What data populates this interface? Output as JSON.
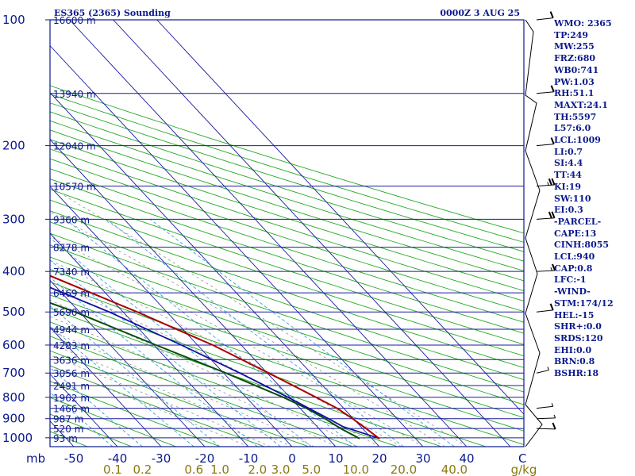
{
  "header": {
    "station": "ES365 (2365) Sounding",
    "time": "0000Z  3 AUG 25"
  },
  "indices": [
    "WMO: 2365",
    "TP:249",
    "MW:255",
    "FRZ:680",
    "WB0:741",
    "PW:1.03",
    "RH:51.1",
    "MAXT:24.1",
    "TH:5597",
    "L57:6.0",
    "LCL:1009",
    "LI:0.7",
    "SI:4.4",
    "TT:44",
    "KI:19",
    "SW:110",
    "EI:0.3",
    "-PARCEL-",
    "CAPE:13",
    "CINH:8055",
    "LCL:940",
    "CAP:0.8",
    "LFC:-1",
    "-WIND-",
    "STM:174/12",
    "HEL:-15",
    "SHR+:0.0",
    "SRDS:120",
    "EHI:0.0",
    "BRN:0.8",
    "BSHR:18"
  ],
  "colors": {
    "axis": "#0b1a8c",
    "isobar": "#1a1aa0",
    "isotherm": "#1a1aa0",
    "dry_adiabat": "#22aa22",
    "moist_adiabat": "#909090",
    "mixing_ratio": "#3aa0e0",
    "temperature": "#aa0000",
    "dewpoint": "#0b4d0b",
    "parcel": "#1010a0",
    "mixing_ratio_labels": "#8a7a10",
    "wind": "#000000"
  },
  "chart_data": {
    "type": "skew-t",
    "xlabel_left": "mb",
    "xlabel_right": "C",
    "mixing_ratio_unit": "g/kg",
    "pressure_ticks": [
      "100",
      "200",
      "300",
      "400",
      "500",
      "600",
      "700",
      "800",
      "900",
      "1000"
    ],
    "pressure_values": [
      100,
      200,
      300,
      400,
      500,
      600,
      700,
      800,
      900,
      1000
    ],
    "temperature_ticks": [
      "-50",
      "-40",
      "-30",
      "-20",
      "-10",
      "0",
      "10",
      "20",
      "30",
      "40"
    ],
    "temperature_values": [
      -50,
      -40,
      -30,
      -20,
      -10,
      0,
      10,
      20,
      30,
      40
    ],
    "mixing_ratio_ticks": [
      "0.1",
      "0.2",
      "0.6",
      "1.0",
      "2.0",
      "3.0",
      "5.0",
      "10.0",
      "20.0",
      "40.0"
    ],
    "mixing_ratio_values": [
      0.1,
      0.2,
      0.6,
      1.0,
      2.0,
      3.0,
      5.0,
      10.0,
      20.0,
      40.0
    ],
    "heights": [
      {
        "p": 100,
        "label": "16600 m"
      },
      {
        "p": 150,
        "label": "13940 m"
      },
      {
        "p": 200,
        "label": "12040 m"
      },
      {
        "p": 250,
        "label": "10570 m"
      },
      {
        "p": 300,
        "label": "9360 m"
      },
      {
        "p": 350,
        "label": "8278 m"
      },
      {
        "p": 400,
        "label": "7340 m"
      },
      {
        "p": 450,
        "label": "6469 m"
      },
      {
        "p": 500,
        "label": "5690 m"
      },
      {
        "p": 550,
        "label": "4944 m"
      },
      {
        "p": 600,
        "label": "4283 m"
      },
      {
        "p": 650,
        "label": "3636 m"
      },
      {
        "p": 700,
        "label": "3056 m"
      },
      {
        "p": 750,
        "label": "2491 m"
      },
      {
        "p": 800,
        "label": "1962 m"
      },
      {
        "p": 850,
        "label": "1466 m"
      },
      {
        "p": 900,
        "label": "987 m"
      },
      {
        "p": 950,
        "label": "520 m"
      },
      {
        "p": 1000,
        "label": "93 m"
      }
    ],
    "temperature_profile": [
      {
        "p": 1004,
        "t": 21.8
      },
      {
        "p": 1000,
        "t": 21.6
      },
      {
        "p": 950,
        "t": 20.8
      },
      {
        "p": 900,
        "t": 19.8
      },
      {
        "p": 850,
        "t": 18.5
      },
      {
        "p": 800,
        "t": 16.0
      },
      {
        "p": 700,
        "t": 10.3
      },
      {
        "p": 600,
        "t": 3.5
      },
      {
        "p": 500,
        "t": -6.8
      },
      {
        "p": 400,
        "t": -20.5
      },
      {
        "p": 300,
        "t": -37.0
      },
      {
        "p": 250,
        "t": -48.5
      },
      {
        "p": 200,
        "t": -47.0
      },
      {
        "p": 150,
        "t": -48.0
      },
      {
        "p": 100,
        "t": -52.0
      }
    ],
    "dewpoint_profile": [
      {
        "p": 1004,
        "t": 17.2
      },
      {
        "p": 1000,
        "t": 17.0
      },
      {
        "p": 950,
        "t": 15.0
      },
      {
        "p": 900,
        "t": 13.5
      },
      {
        "p": 850,
        "t": 11.5
      },
      {
        "p": 800,
        "t": 8.5
      },
      {
        "p": 700,
        "t": 0.5
      },
      {
        "p": 600,
        "t": -9.5
      },
      {
        "p": 500,
        "t": -21.0
      },
      {
        "p": 400,
        "t": -38.0
      },
      {
        "p": 300,
        "t": -51.0
      },
      {
        "p": 250,
        "t": -67.0
      },
      {
        "p": 200,
        "t": -93.0
      },
      {
        "p": 150,
        "t": -105.0
      },
      {
        "p": 100,
        "t": -125.0
      }
    ],
    "parcel_profile": [
      {
        "p": 1004,
        "t": 21.8
      },
      {
        "p": 940,
        "t": 15.9
      },
      {
        "p": 900,
        "t": 14.3
      },
      {
        "p": 800,
        "t": 9.6
      },
      {
        "p": 700,
        "t": 3.7
      },
      {
        "p": 600,
        "t": -3.7
      },
      {
        "p": 500,
        "t": -13.2
      },
      {
        "p": 400,
        "t": -27.0
      },
      {
        "p": 300,
        "t": -46.0
      },
      {
        "p": 250,
        "t": -58.0
      },
      {
        "p": 200,
        "t": -70.0
      },
      {
        "p": 150,
        "t": -88.0
      },
      {
        "p": 100,
        "t": -118.0
      }
    ],
    "wind_barbs": [
      {
        "p": 100,
        "dir": 60,
        "kt": 10
      },
      {
        "p": 150,
        "dir": 65,
        "kt": 10
      },
      {
        "p": 200,
        "dir": 65,
        "kt": 10
      },
      {
        "p": 250,
        "dir": 70,
        "kt": 25
      },
      {
        "p": 300,
        "dir": 70,
        "kt": 20
      },
      {
        "p": 400,
        "dir": 75,
        "kt": 15
      },
      {
        "p": 500,
        "dir": 60,
        "kt": 10
      },
      {
        "p": 700,
        "dir": 40,
        "kt": 5
      },
      {
        "p": 850,
        "dir": 60,
        "kt": 5
      },
      {
        "p": 900,
        "dir": 80,
        "kt": 5
      },
      {
        "p": 950,
        "dir": 100,
        "kt": 10
      }
    ]
  }
}
